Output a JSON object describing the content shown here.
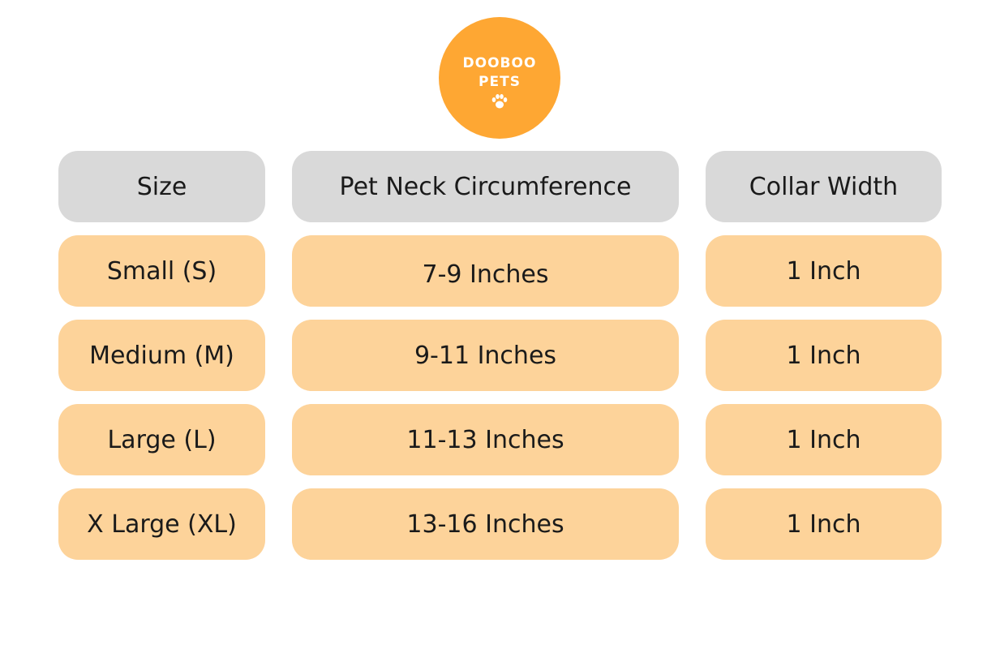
{
  "logo": {
    "line1": "DOOBOO",
    "line2": "PETS",
    "icon": "paw-icon",
    "color": "#FEA733"
  },
  "table": {
    "headers": [
      "Size",
      "Pet Neck Circumference",
      "Collar Width"
    ],
    "rows": [
      [
        "Small (S)",
        "7-9 Inches",
        "1 Inch"
      ],
      [
        "Medium (M)",
        "9-11 Inches",
        "1 Inch"
      ],
      [
        "Large (L)",
        "11-13 Inches",
        "1 Inch"
      ],
      [
        "X Large (XL)",
        "13-16 Inches",
        "1 Inch"
      ]
    ],
    "header_color": "#D9D9D9",
    "row_color": "#FDD39A"
  }
}
